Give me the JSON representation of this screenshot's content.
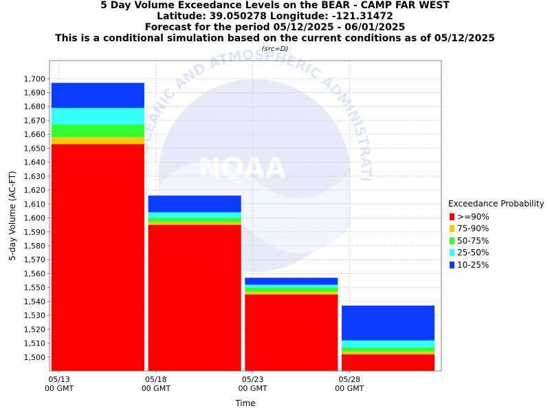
{
  "chart_data": {
    "type": "bar",
    "stacked": true,
    "title_lines": [
      "5 Day Volume Exceedance Levels on the BEAR - CAMP FAR WEST",
      "Latitude: 39.050278 Longitude: -121.31472",
      "Forecast for the period 05/12/2025 - 06/01/2025",
      "This is a conditional simulation based on the current conditions as of 05/12/2025"
    ],
    "subtitle": "(src=D)",
    "xlabel": "Time",
    "ylabel": "5-day Volume (AC-FT)",
    "ylim": [
      1490,
      1713
    ],
    "y_ticks": [
      "1,500",
      "1,510",
      "1,520",
      "1,530",
      "1,540",
      "1,550",
      "1,560",
      "1,570",
      "1,580",
      "1,590",
      "1,600",
      "1,610",
      "1,620",
      "1,630",
      "1,640",
      "1,650",
      "1,660",
      "1,670",
      "1,680",
      "1,690",
      "1,700"
    ],
    "y_tick_values": [
      1500,
      1510,
      1520,
      1530,
      1540,
      1550,
      1560,
      1570,
      1580,
      1590,
      1600,
      1610,
      1620,
      1630,
      1640,
      1650,
      1660,
      1670,
      1680,
      1690,
      1700
    ],
    "x_ticks": [
      {
        "date": "05/13",
        "sub": "00 GMT",
        "pos": 0
      },
      {
        "date": "05/18",
        "sub": "00 GMT",
        "pos": 5
      },
      {
        "date": "05/23",
        "sub": "00 GMT",
        "pos": 10
      },
      {
        "date": "05/28",
        "sub": "00 GMT",
        "pos": 15
      }
    ],
    "x_range_days": [
      -0.5,
      19.75
    ],
    "bars": [
      {
        "start_day": -0.4,
        "end_day": 4.4,
        "levels": [
          1653,
          1658,
          1667,
          1679,
          1697
        ]
      },
      {
        "start_day": 4.6,
        "end_day": 9.4,
        "levels": [
          1595,
          1597,
          1600,
          1604,
          1616
        ]
      },
      {
        "start_day": 9.6,
        "end_day": 14.4,
        "levels": [
          1545,
          1547,
          1550,
          1552,
          1557
        ]
      },
      {
        "start_day": 14.6,
        "end_day": 19.4,
        "levels": [
          1502,
          1504,
          1507,
          1512,
          1537
        ]
      }
    ],
    "series": [
      {
        "name": ">=90%",
        "color": "#ff0000"
      },
      {
        "name": "75-90%",
        "color": "#ffc800"
      },
      {
        "name": "50-75%",
        "color": "#33ff33"
      },
      {
        "name": "25-50%",
        "color": "#33ffff"
      },
      {
        "name": "10-25%",
        "color": "#0a3dff"
      }
    ],
    "legend": {
      "title": "Exceedance Probability",
      "position": "right"
    },
    "watermark": "NOAA",
    "watermark_text": "NATIONAL OCEANIC AND ATMOSPHERIC ADMINISTRATION",
    "grid": true
  }
}
